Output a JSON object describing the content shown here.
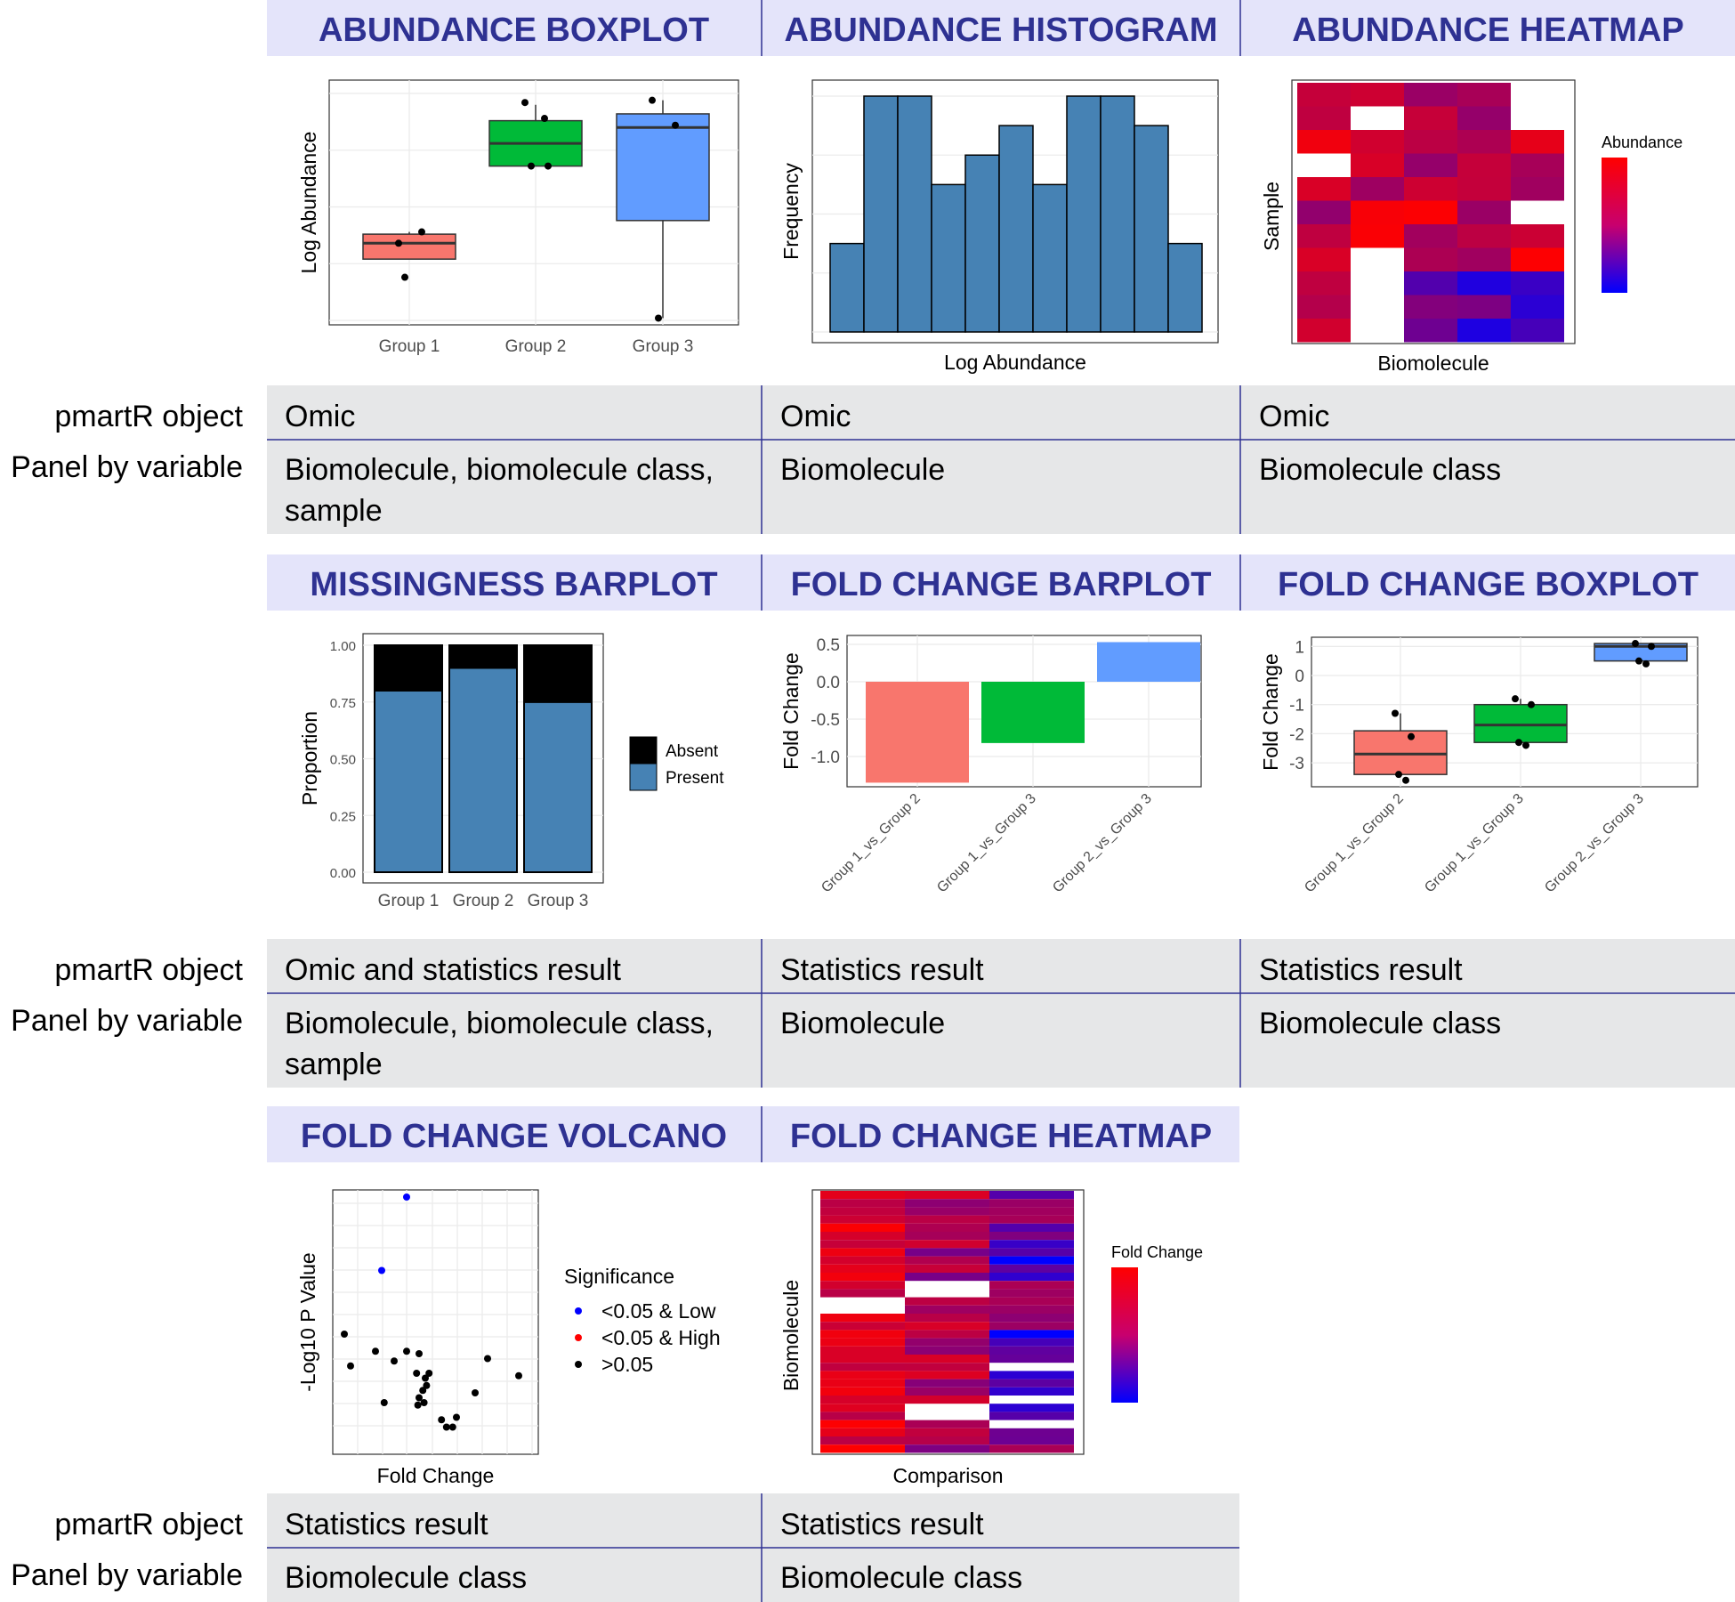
{
  "row_labels": {
    "object": "pmartR object",
    "panel": "Panel by variable"
  },
  "colors": {
    "header_bg": "#e4e4fa",
    "header_text": "#2e3192",
    "cell_bg": "#e6e7e8",
    "rule": "#2e3192",
    "group1": "#f8766d",
    "group2": "#00ba38",
    "group3": "#619cff",
    "hist": "#4682b4",
    "absent": "#000000",
    "present": "#4682b4"
  },
  "panels": [
    {
      "title": "ABUNDANCE BOXPLOT",
      "object": "Omic",
      "panel_by": [
        "Biomolecule, biomolecule class,",
        "sample"
      ]
    },
    {
      "title": "ABUNDANCE HISTOGRAM",
      "object": "Omic",
      "panel_by": [
        "Biomolecule"
      ]
    },
    {
      "title": "ABUNDANCE HEATMAP",
      "object": "Omic",
      "panel_by": [
        "Biomolecule class"
      ]
    },
    {
      "title": "MISSINGNESS BARPLOT",
      "object": "Omic and statistics result",
      "panel_by": [
        "Biomolecule, biomolecule class,",
        "sample"
      ]
    },
    {
      "title": "FOLD CHANGE BARPLOT",
      "object": "Statistics result",
      "panel_by": [
        "Biomolecule"
      ]
    },
    {
      "title": "FOLD CHANGE BOXPLOT",
      "object": "Statistics result",
      "panel_by": [
        "Biomolecule class"
      ]
    },
    {
      "title": "FOLD CHANGE VOLCANO",
      "object": "Statistics result",
      "panel_by": [
        "Biomolecule class"
      ]
    },
    {
      "title": "FOLD CHANGE HEATMAP",
      "object": "Statistics result",
      "panel_by": [
        "Biomolecule class"
      ]
    }
  ],
  "chart_data": [
    {
      "type": "box",
      "ylabel": "Log Abundance",
      "xlabel": "",
      "categories": [
        "Group 1",
        "Group 2",
        "Group 3"
      ],
      "ylim": [
        0,
        10
      ],
      "boxes": [
        {
          "q1": 2.7,
          "median": 3.4,
          "q3": 3.8,
          "whisker_low": 2.7,
          "whisker_high": 3.9
        },
        {
          "q1": 6.8,
          "median": 7.8,
          "q3": 8.8,
          "whisker_low": 6.8,
          "whisker_high": 9.5
        },
        {
          "q1": 4.4,
          "median": 8.5,
          "q3": 9.1,
          "whisker_low": 0.1,
          "whisker_high": 9.7
        }
      ],
      "points": [
        [
          [
            3.4,
            3.9,
            1.9
          ]
        ],
        [
          [
            9.6,
            6.8,
            6.8,
            8.9
          ]
        ],
        [
          [
            9.7,
            8.6,
            0.1
          ]
        ]
      ]
    },
    {
      "type": "histogram",
      "xlabel": "Log Abundance",
      "ylabel": "Frequency",
      "counts": [
        3,
        8,
        8,
        5,
        6,
        7,
        5,
        8,
        8,
        7,
        3
      ]
    },
    {
      "type": "heatmap",
      "xlabel": "Biomolecule",
      "ylabel": "Sample",
      "legend_title": "Abundance",
      "scale": [
        "#0000ff",
        "#ff0000"
      ]
    },
    {
      "type": "bar",
      "ylabel": "Proportion",
      "xlabel": "",
      "stacked": true,
      "categories": [
        "Group 1",
        "Group 2",
        "Group 3"
      ],
      "yticks": [
        "0.00",
        "0.25",
        "0.50",
        "0.75",
        "1.00"
      ],
      "series": [
        {
          "name": "Absent",
          "values": [
            0.2,
            0.1,
            0.25
          ]
        },
        {
          "name": "Present",
          "values": [
            0.8,
            0.9,
            0.75
          ]
        }
      ]
    },
    {
      "type": "bar",
      "ylabel": "Fold Change",
      "xlabel": "",
      "categories": [
        "Group 1_vs_Group 2",
        "Group 1_vs_Group 3",
        "Group 2_vs_Group 3"
      ],
      "values": [
        -1.35,
        -0.82,
        0.53
      ],
      "yticks": [
        "0.5",
        "0.0",
        "-0.5",
        "-1.0"
      ]
    },
    {
      "type": "box",
      "ylabel": "Fold Change",
      "xlabel": "",
      "categories": [
        "Group 1_vs_Group 2",
        "Group 1_vs_Group 3",
        "Group 2_vs_Group 3"
      ],
      "yticks": [
        "1",
        "0",
        "-1",
        "-2",
        "-3"
      ],
      "boxes": [
        {
          "q1": -3.4,
          "median": -2.7,
          "q3": -1.9,
          "whisker_low": -3.4,
          "whisker_high": -1.3
        },
        {
          "q1": -2.3,
          "median": -1.7,
          "q3": -1.0,
          "whisker_low": -2.3,
          "whisker_high": -0.8
        },
        {
          "q1": 0.5,
          "median": 1.0,
          "q3": 1.1,
          "whisker_low": 0.4,
          "whisker_high": 1.1
        }
      ],
      "points": [
        [
          [
            -1.3,
            -2.1,
            -3.4,
            -3.6
          ]
        ],
        [
          [
            -0.8,
            -1.0,
            -2.3,
            -2.4
          ]
        ],
        [
          [
            1.1,
            1.0,
            0.5,
            0.4
          ]
        ]
      ]
    },
    {
      "type": "scatter",
      "xlabel": "Fold Change",
      "ylabel": "-Log10 P Value",
      "legend_title": "Significance",
      "legend": [
        {
          "label": "<0.05 & Low",
          "color": "#0000ff"
        },
        {
          "label": "<0.05 & High",
          "color": "#ff0000"
        },
        {
          "label": ">0.05",
          "color": "#000000"
        }
      ],
      "points": [
        {
          "x": 0.0,
          "y": 10.0,
          "g": 0
        },
        {
          "x": -0.2,
          "y": 7.0,
          "g": 0
        },
        {
          "x": -0.5,
          "y": 4.4,
          "g": 2
        },
        {
          "x": -0.45,
          "y": 3.1,
          "g": 2
        },
        {
          "x": -0.25,
          "y": 3.7,
          "g": 2
        },
        {
          "x": -0.1,
          "y": 3.3,
          "g": 2
        },
        {
          "x": 0.0,
          "y": 3.7,
          "g": 2
        },
        {
          "x": 0.1,
          "y": 3.6,
          "g": 2
        },
        {
          "x": 0.08,
          "y": 2.8,
          "g": 2
        },
        {
          "x": 0.15,
          "y": 2.6,
          "g": 2
        },
        {
          "x": 0.18,
          "y": 2.8,
          "g": 2
        },
        {
          "x": 0.16,
          "y": 2.3,
          "g": 2
        },
        {
          "x": 0.13,
          "y": 2.1,
          "g": 2
        },
        {
          "x": 0.1,
          "y": 1.8,
          "g": 2
        },
        {
          "x": 0.14,
          "y": 1.6,
          "g": 2
        },
        {
          "x": 0.09,
          "y": 1.5,
          "g": 2
        },
        {
          "x": -0.18,
          "y": 1.6,
          "g": 2
        },
        {
          "x": 0.28,
          "y": 0.9,
          "g": 2
        },
        {
          "x": 0.32,
          "y": 0.6,
          "g": 2
        },
        {
          "x": 0.37,
          "y": 0.6,
          "g": 2
        },
        {
          "x": 0.4,
          "y": 1.0,
          "g": 2
        },
        {
          "x": 0.55,
          "y": 2.0,
          "g": 2
        },
        {
          "x": 0.65,
          "y": 3.4,
          "g": 2
        },
        {
          "x": 0.9,
          "y": 2.7,
          "g": 2
        }
      ]
    },
    {
      "type": "heatmap",
      "xlabel": "Comparison",
      "ylabel": "Biomolecule",
      "legend_title": "Fold Change",
      "scale": [
        "#0000ff",
        "#ff0000"
      ]
    }
  ]
}
